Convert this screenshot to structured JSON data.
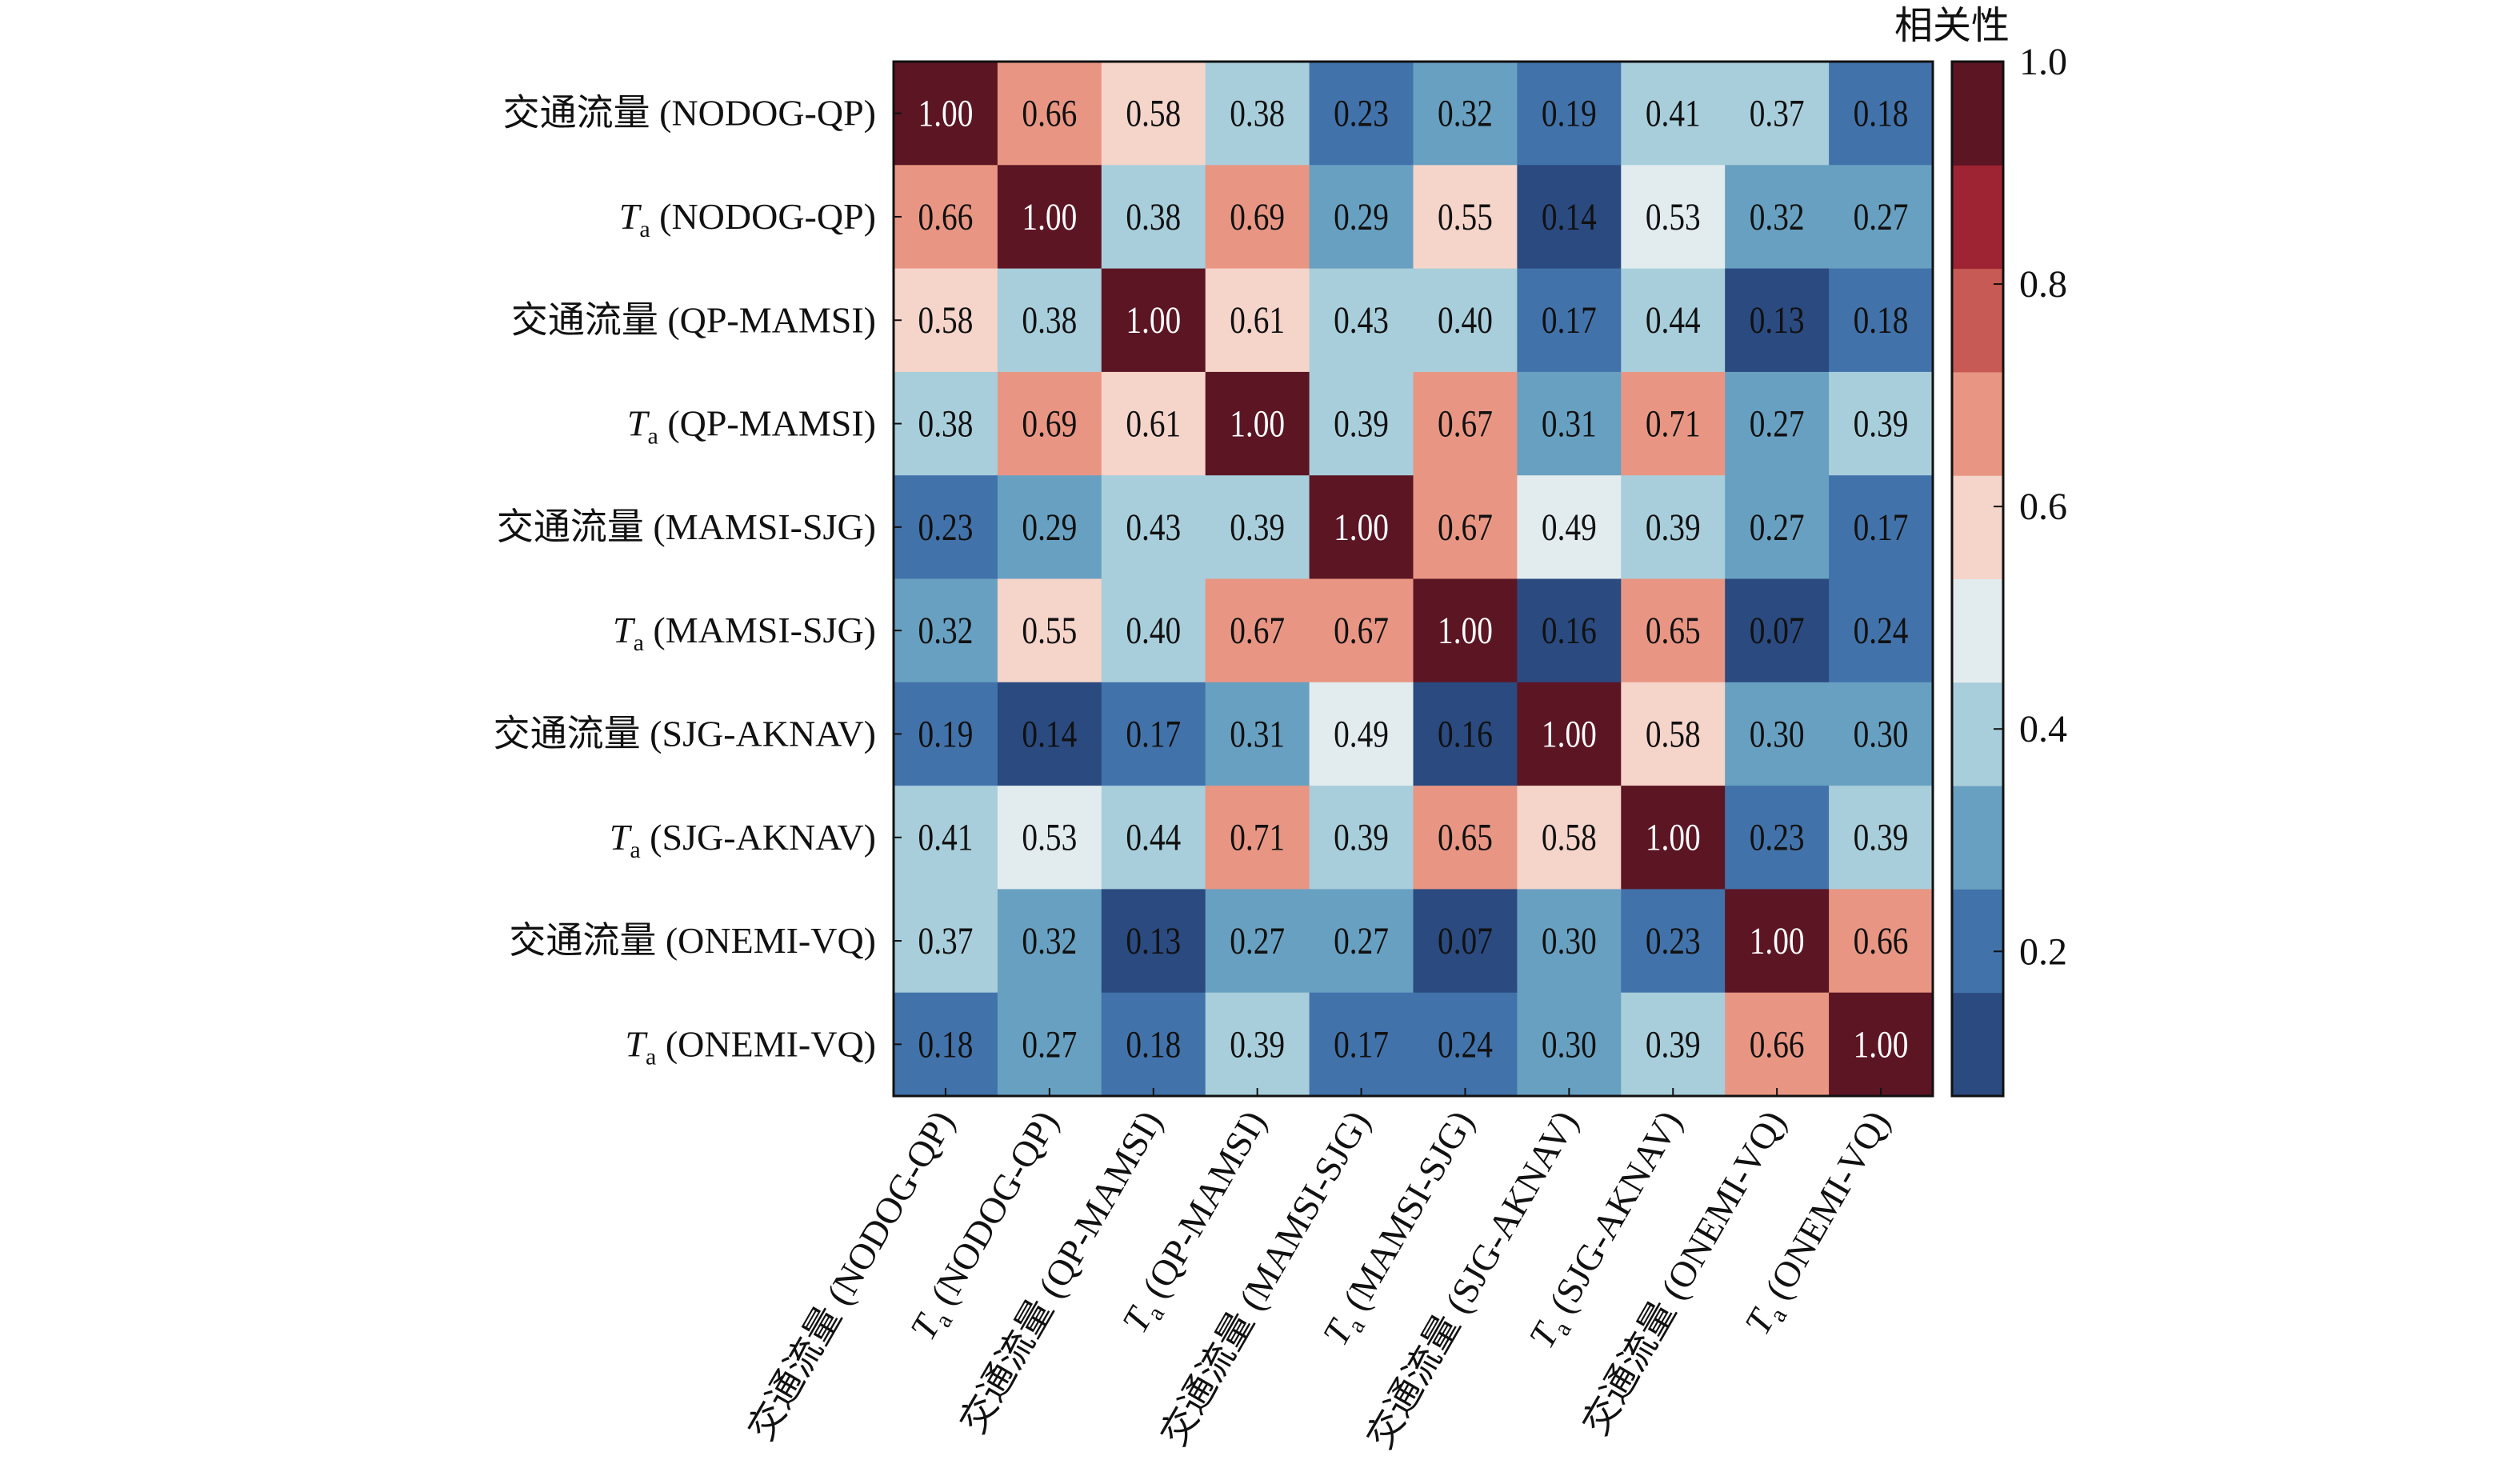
{
  "chart_data": {
    "type": "heatmap",
    "title": "",
    "colorbar": {
      "label": "相关性",
      "range": [
        0.07,
        1.0
      ],
      "ticks": [
        0.2,
        0.4,
        0.6,
        0.8,
        1.0
      ],
      "tick_labels": [
        "0.2",
        "0.4",
        "0.6",
        "0.8",
        "1.0"
      ],
      "bins": 10,
      "colors": [
        "#2a4a80",
        "#4272aa",
        "#68a0c1",
        "#a8cedb",
        "#e2ecef",
        "#f5d4ca",
        "#e89683",
        "#c85a55",
        "#9e2433",
        "#5c1523"
      ]
    },
    "labels": [
      {
        "var": "交通流量",
        "sub": "",
        "site": "(NODOG-QP)"
      },
      {
        "var": "T",
        "sub": "a",
        "site": "(NODOG-QP)"
      },
      {
        "var": "交通流量",
        "sub": "",
        "site": "(QP-MAMSI)"
      },
      {
        "var": "T",
        "sub": "a",
        "site": "(QP-MAMSI)"
      },
      {
        "var": "交通流量",
        "sub": "",
        "site": "(MAMSI-SJG)"
      },
      {
        "var": "T",
        "sub": "a",
        "site": "(MAMSI-SJG)"
      },
      {
        "var": "交通流量",
        "sub": "",
        "site": "(SJG-AKNAV)"
      },
      {
        "var": "T",
        "sub": "a",
        "site": "(SJG-AKNAV)"
      },
      {
        "var": "交通流量",
        "sub": "",
        "site": "(ONEMI-VQ)"
      },
      {
        "var": "T",
        "sub": "a",
        "site": "(ONEMI-VQ)"
      }
    ],
    "values": [
      [
        1.0,
        0.66,
        0.58,
        0.38,
        0.23,
        0.32,
        0.19,
        0.41,
        0.37,
        0.18
      ],
      [
        0.66,
        1.0,
        0.38,
        0.69,
        0.29,
        0.55,
        0.14,
        0.53,
        0.32,
        0.27
      ],
      [
        0.58,
        0.38,
        1.0,
        0.61,
        0.43,
        0.4,
        0.17,
        0.44,
        0.13,
        0.18
      ],
      [
        0.38,
        0.69,
        0.61,
        1.0,
        0.39,
        0.67,
        0.31,
        0.71,
        0.27,
        0.39
      ],
      [
        0.23,
        0.29,
        0.43,
        0.39,
        1.0,
        0.67,
        0.49,
        0.39,
        0.27,
        0.17
      ],
      [
        0.32,
        0.55,
        0.4,
        0.67,
        0.67,
        1.0,
        0.16,
        0.65,
        0.07,
        0.24
      ],
      [
        0.19,
        0.14,
        0.17,
        0.31,
        0.49,
        0.16,
        1.0,
        0.58,
        0.3,
        0.3
      ],
      [
        0.41,
        0.53,
        0.44,
        0.71,
        0.39,
        0.65,
        0.58,
        1.0,
        0.23,
        0.39
      ],
      [
        0.37,
        0.32,
        0.13,
        0.27,
        0.27,
        0.07,
        0.3,
        0.23,
        1.0,
        0.66
      ],
      [
        0.18,
        0.27,
        0.18,
        0.39,
        0.17,
        0.24,
        0.3,
        0.39,
        0.66,
        1.0
      ]
    ]
  }
}
